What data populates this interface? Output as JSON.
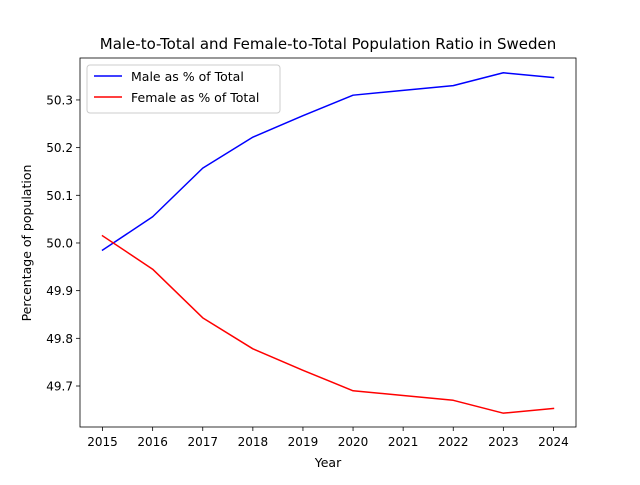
{
  "chart_data": {
    "type": "line",
    "title": "Male-to-Total and Female-to-Total Population Ratio in Sweden",
    "xlabel": "Year",
    "ylabel": "Percentage of population",
    "x": [
      2015,
      2016,
      2017,
      2018,
      2019,
      2020,
      2021,
      2022,
      2023,
      2024
    ],
    "xticks": [
      2015,
      2016,
      2017,
      2018,
      2019,
      2020,
      2021,
      2022,
      2023,
      2024
    ],
    "yticks": [
      49.7,
      49.8,
      49.9,
      50.0,
      50.1,
      50.2,
      50.3
    ],
    "ytick_labels": [
      "49.7",
      "49.8",
      "49.9",
      "50.0",
      "50.1",
      "50.2",
      "50.3"
    ],
    "xlim": [
      2014.55,
      2024.45
    ],
    "ylim": [
      49.614,
      50.388
    ],
    "grid": false,
    "legend_position": "upper-left",
    "series": [
      {
        "name": "Male as % of Total",
        "color": "#0000ff",
        "values": [
          49.985,
          50.055,
          50.157,
          50.222,
          50.267,
          50.31,
          50.32,
          50.33,
          50.357,
          50.347
        ]
      },
      {
        "name": "Female as % of Total",
        "color": "#ff0000",
        "values": [
          50.015,
          49.945,
          49.843,
          49.778,
          49.733,
          49.69,
          49.68,
          49.67,
          49.643,
          49.653
        ]
      }
    ]
  }
}
